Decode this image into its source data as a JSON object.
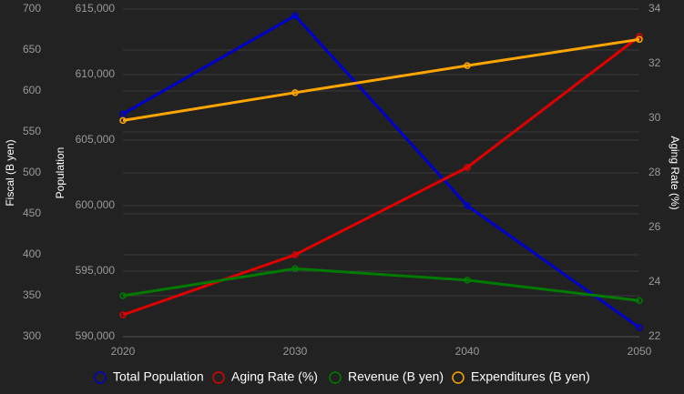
{
  "chart_data": {
    "type": "line",
    "categories": [
      "2020",
      "2030",
      "2040",
      "2050"
    ],
    "y_label": "Population",
    "y2_label": "Aging Rate (%)",
    "y3_label": "Fiscal (B yen)",
    "ylim": [
      590000,
      615000
    ],
    "yticks": [
      {
        "value": 590000,
        "label": "590,000"
      },
      {
        "value": 595000,
        "label": "595,000"
      },
      {
        "value": 600000,
        "label": "600,000"
      },
      {
        "value": 605000,
        "label": "605,000"
      },
      {
        "value": 610000,
        "label": "610,000"
      },
      {
        "value": 615000,
        "label": "615,000"
      }
    ],
    "y2lim": [
      22,
      34
    ],
    "y2ticks": [
      22,
      24,
      26,
      28,
      30,
      32,
      34
    ],
    "y3lim": [
      300,
      700
    ],
    "y3ticks": [
      300,
      350,
      400,
      450,
      500,
      550,
      600,
      650,
      700
    ],
    "grid": true,
    "series": [
      {
        "name": "Total Population",
        "color": "#0000cc",
        "axis": "y",
        "values": [
          607000,
          614500,
          600000,
          590700
        ]
      },
      {
        "name": "Aging Rate (%)",
        "color": "#e00000",
        "axis": "y2",
        "values": [
          22.8,
          25.0,
          28.2,
          33.0
        ]
      },
      {
        "name": "Revenue (B yen)",
        "color": "#007a00",
        "axis": "y3",
        "values": [
          350,
          383,
          369,
          344
        ]
      },
      {
        "name": "Expenditures (B yen)",
        "color": "#ffa500",
        "axis": "y3",
        "values": [
          564,
          598,
          631,
          663
        ]
      }
    ]
  }
}
